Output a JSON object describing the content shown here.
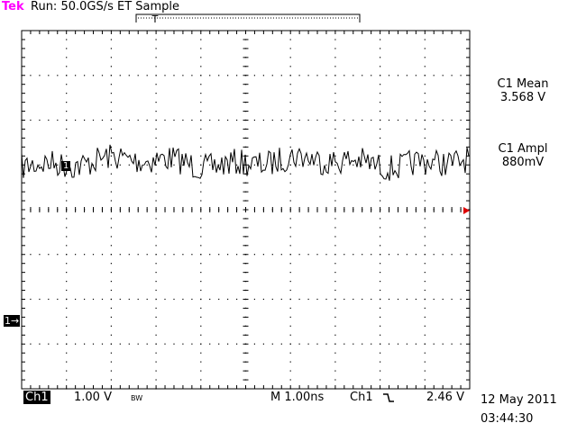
{
  "header": {
    "brand": "Tek",
    "status": "Run: 50.0GS/s ET Sample"
  },
  "record_bracket": {
    "trigger_marker": "T"
  },
  "measurements": [
    {
      "label": "C1 Mean",
      "value": "3.568 V"
    },
    {
      "label": "C1 Ampl",
      "value": "880mV"
    }
  ],
  "channel": {
    "name": "Ch1",
    "scale": "1.00 V",
    "bandwidth_limit": "BW",
    "ground_marker": "1→",
    "trace_marker": "1"
  },
  "horizontal": {
    "timebase": "M 1.00ns"
  },
  "trigger": {
    "source": "Ch1",
    "slope_icon": "falling-edge-icon",
    "level": "2.46 V"
  },
  "datetime": {
    "date": "12 May 2011",
    "time": "03:44:30"
  },
  "colors": {
    "brand": "#ff00ff",
    "trace": "#000000",
    "grid": "#000000",
    "background": "#ffffff"
  }
}
